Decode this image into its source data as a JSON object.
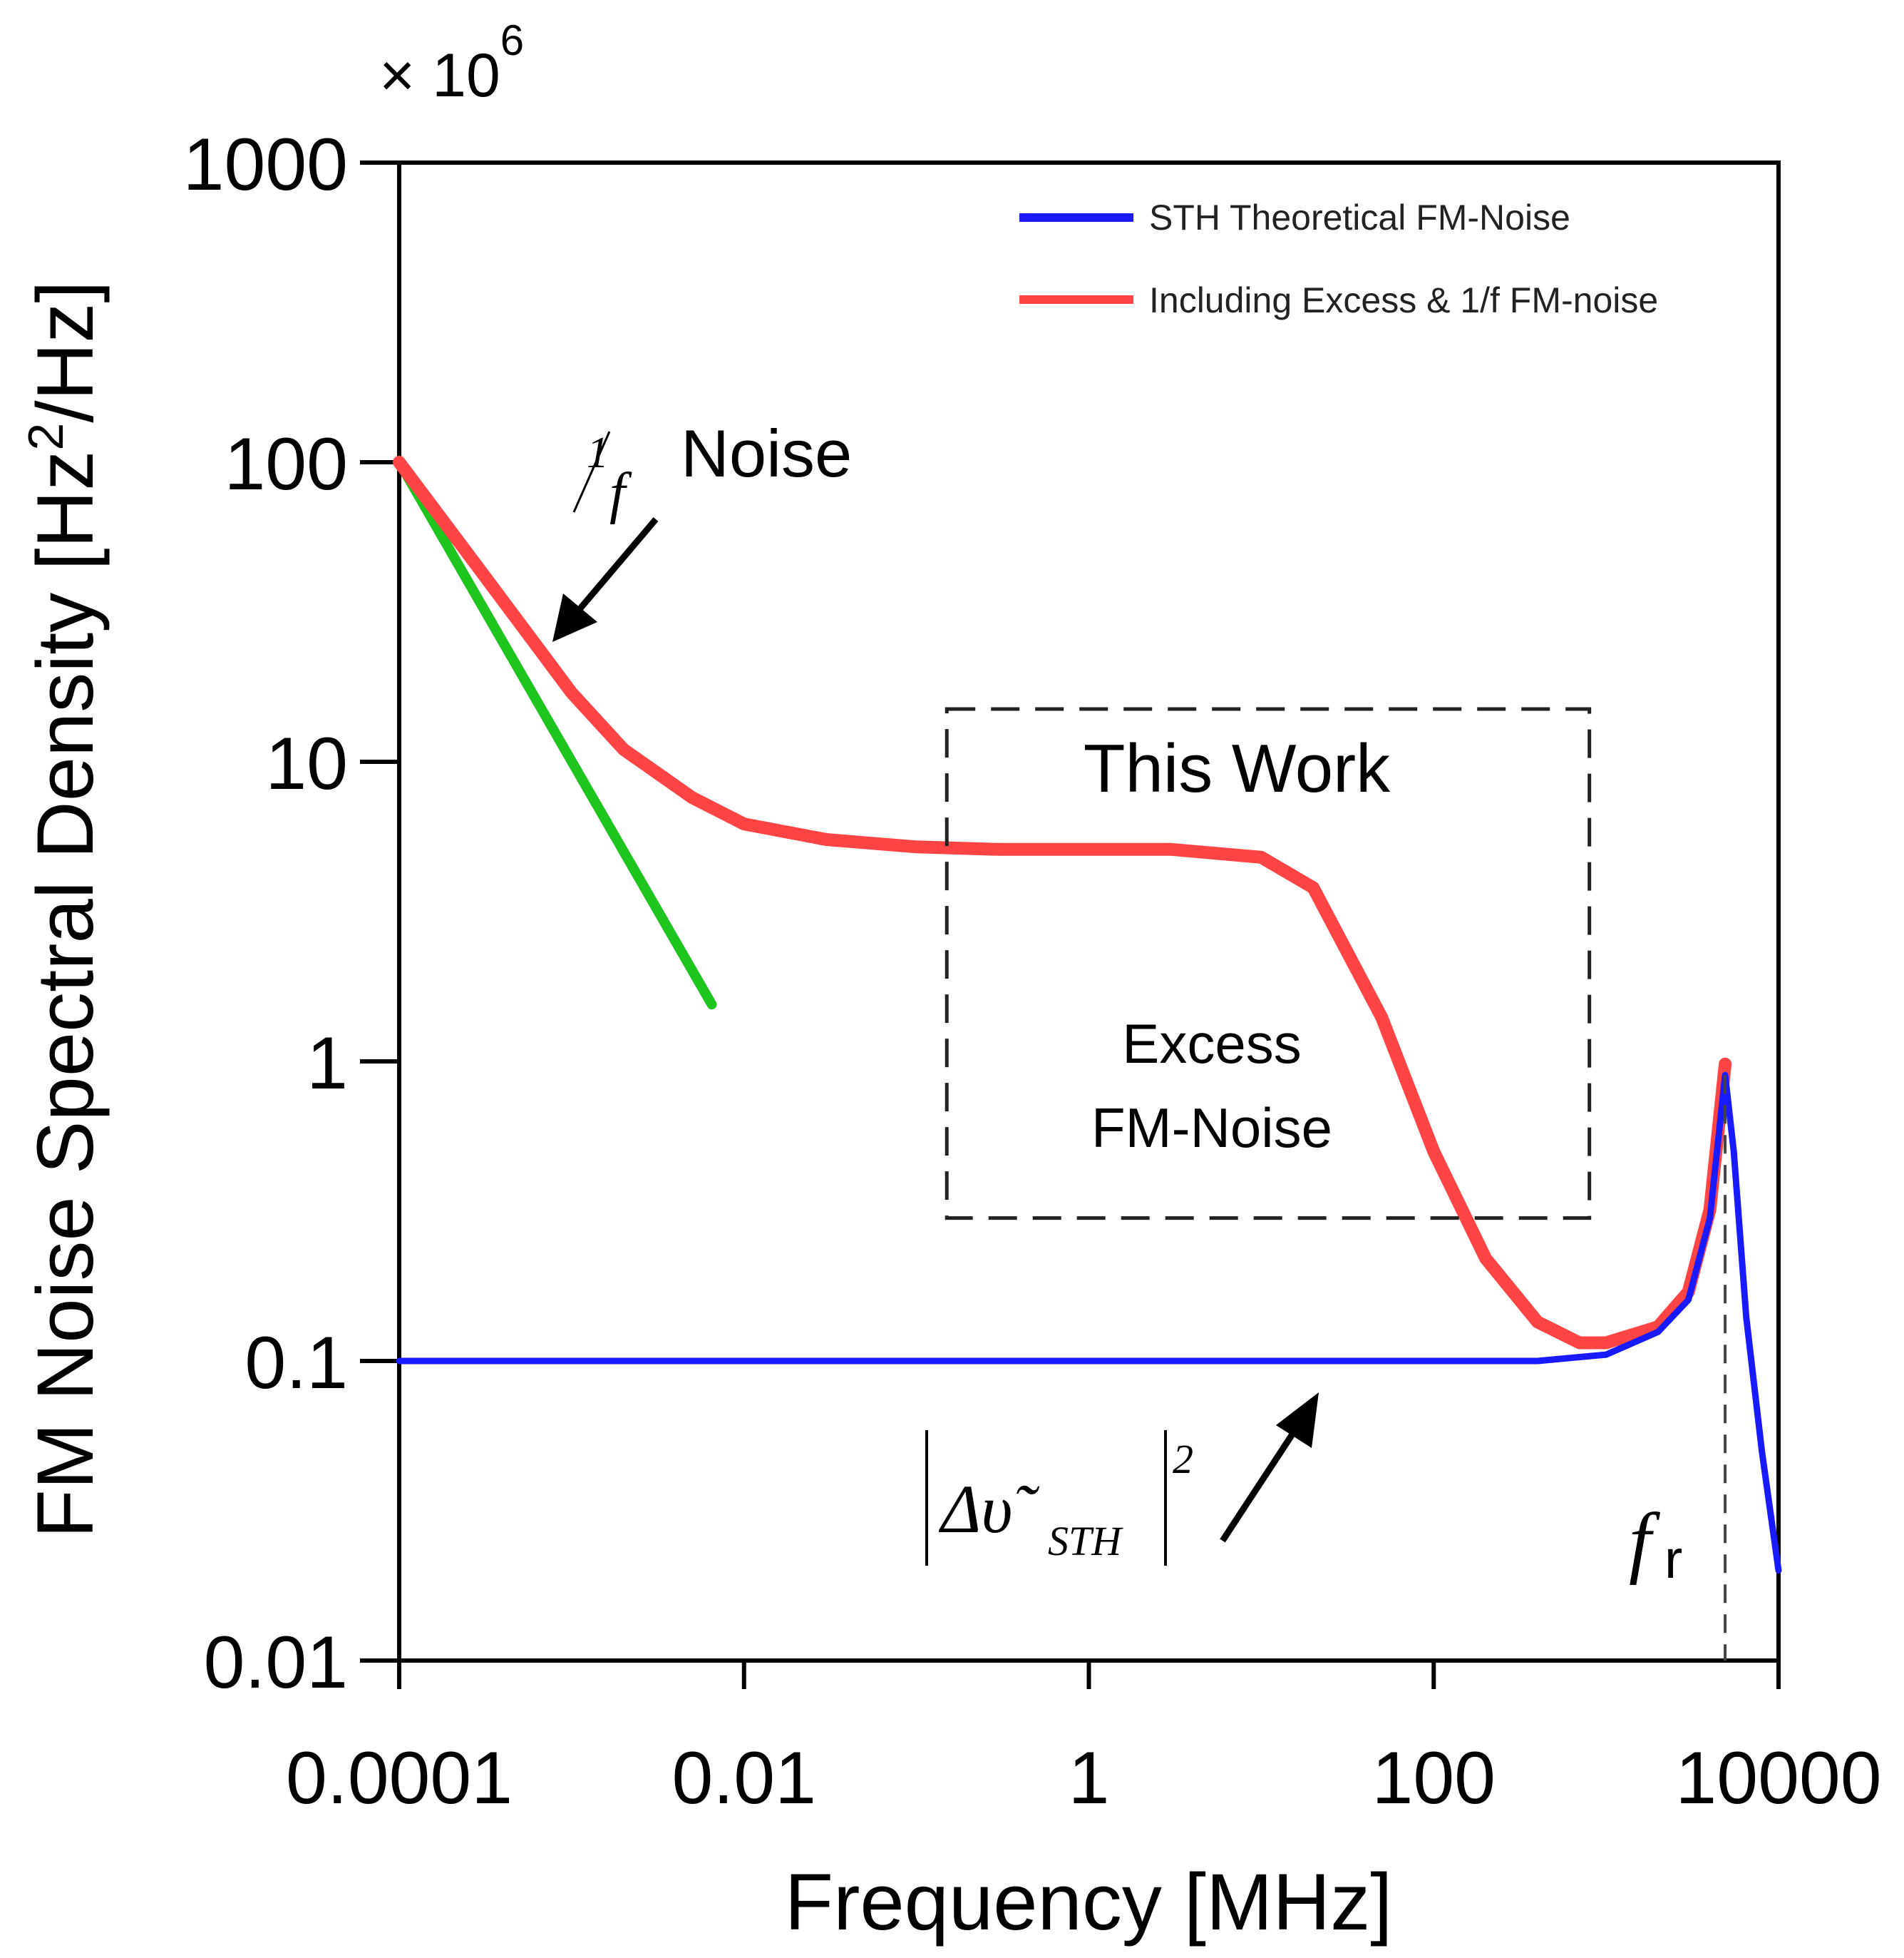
{
  "chart_data": {
    "type": "line",
    "title": "",
    "scale_note": "× 10",
    "scale_exponent": "6",
    "xlabel": "Frequency [MHz]",
    "ylabel": "FM Noise Spectral Density [Hz",
    "ylabel_sup": "2",
    "ylabel_tail": "/Hz]",
    "xscale": "log",
    "yscale": "log",
    "xlim": [
      0.0001,
      10000
    ],
    "ylim": [
      0.01,
      1000
    ],
    "x_ticks": [
      0.0001,
      0.01,
      1,
      100,
      10000
    ],
    "x_tick_labels": [
      "0.0001",
      "0.01",
      "1",
      "100",
      "10000"
    ],
    "y_ticks": [
      0.01,
      0.1,
      1,
      10,
      100,
      1000
    ],
    "y_tick_labels": [
      "0.01",
      "0.1",
      "1",
      "10",
      "100",
      "1000"
    ],
    "legend_position": "top-right",
    "series": [
      {
        "name": "STH Theoretical FM-Noise",
        "color": "#1a1aff",
        "x": [
          0.0001,
          0.001,
          0.01,
          0.1,
          1,
          10,
          100,
          400,
          1000,
          2000,
          3000,
          4000,
          4900,
          5500,
          6500,
          8000,
          10000
        ],
        "y": [
          0.1,
          0.1,
          0.1,
          0.1,
          0.1,
          0.1,
          0.1,
          0.1,
          0.105,
          0.125,
          0.16,
          0.3,
          0.9,
          0.5,
          0.14,
          0.05,
          0.02
        ]
      },
      {
        "name": "Including Excess & 1/f FM-noise",
        "color": "#ff4444",
        "x": [
          0.0001,
          0.0003,
          0.001,
          0.002,
          0.005,
          0.01,
          0.03,
          0.1,
          0.3,
          1,
          3,
          10,
          20,
          50,
          100,
          200,
          400,
          700,
          1000,
          2000,
          3000,
          4000,
          4900
        ],
        "y": [
          100,
          43,
          17,
          11,
          7.6,
          6.2,
          5.5,
          5.2,
          5.1,
          5.1,
          5.1,
          4.8,
          3.8,
          1.4,
          0.5,
          0.22,
          0.135,
          0.115,
          0.115,
          0.13,
          0.17,
          0.32,
          0.98
        ]
      },
      {
        "name": "1/f",
        "color": "#1fc41f",
        "x": [
          0.0001,
          0.0065
        ],
        "y": [
          100,
          1.55
        ]
      }
    ],
    "annotations": {
      "one_over_f_num": "1",
      "one_over_f_den": "f",
      "one_over_f_word": "Noise",
      "this_work": "This Work",
      "excess_line1": "Excess",
      "excess_line2": "FM-Noise",
      "delta_symbol": "Δυ̃",
      "delta_sub": "STH",
      "delta_exp": "2",
      "fr_main": "f",
      "fr_sub": "r",
      "box_x": [
        0.15,
        800
      ],
      "box_y": [
        0.3,
        15
      ],
      "fr_value": 4900
    }
  }
}
